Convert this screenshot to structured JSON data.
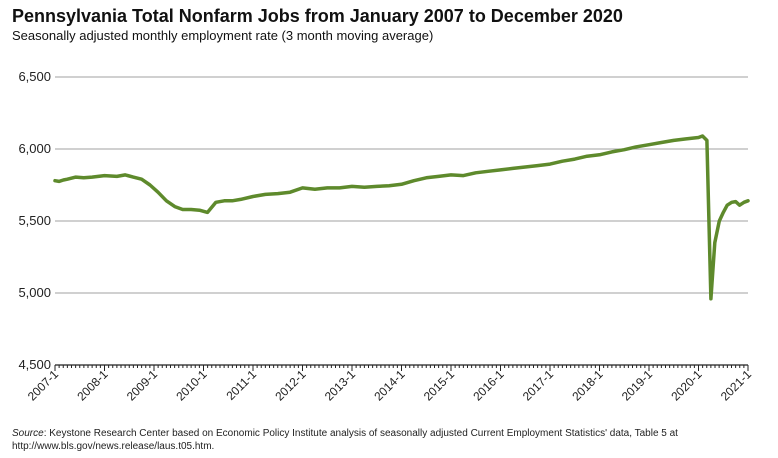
{
  "chart_data": {
    "type": "line",
    "title": "Pennsylvania Total Nonfarm Jobs from January 2007 to December 2020",
    "subtitle": "Seasonally adjusted monthly employment rate (3 month moving average)",
    "xlabel": "",
    "ylabel": "",
    "ylim": [
      4500,
      6500
    ],
    "xlim": [
      2007.0,
      2021.0
    ],
    "y_ticks": [
      "6,500",
      "6,000",
      "5,500",
      "5,000",
      "4,500"
    ],
    "y_tick_values": [
      6500,
      6000,
      5500,
      5000,
      4500
    ],
    "x_ticks": [
      "2007-1",
      "2008-1",
      "2009-1",
      "2010-1",
      "2011-1",
      "2012-1",
      "2013-1",
      "2014-1",
      "2015-1",
      "2016-1",
      "2017-1",
      "2018-1",
      "2019-1",
      "2020-1",
      "2021-1"
    ],
    "x_tick_values": [
      2007,
      2008,
      2009,
      2010,
      2011,
      2012,
      2013,
      2014,
      2015,
      2016,
      2017,
      2018,
      2019,
      2020,
      2021
    ],
    "grid": "horizontal",
    "line_color": "#5e8a2c",
    "series": [
      {
        "x": [
          2007.0,
          2007.08,
          2007.17,
          2007.25,
          2007.42,
          2007.58,
          2007.75,
          2008.0,
          2008.25,
          2008.42,
          2008.58,
          2008.75,
          2008.92,
          2009.08,
          2009.25,
          2009.42,
          2009.58,
          2009.75,
          2009.92,
          2010.08,
          2010.25,
          2010.42,
          2010.58,
          2010.75,
          2011.0,
          2011.25,
          2011.5,
          2011.75,
          2012.0,
          2012.25,
          2012.5,
          2012.75,
          2013.0,
          2013.25,
          2013.5,
          2013.75,
          2014.0,
          2014.25,
          2014.5,
          2014.75,
          2015.0,
          2015.25,
          2015.5,
          2015.75,
          2016.0,
          2016.25,
          2016.5,
          2016.75,
          2017.0,
          2017.25,
          2017.5,
          2017.75,
          2018.0,
          2018.25,
          2018.5,
          2018.75,
          2019.0,
          2019.25,
          2019.5,
          2019.75,
          2020.0,
          2020.08,
          2020.17,
          2020.25,
          2020.33,
          2020.42,
          2020.5,
          2020.58,
          2020.67,
          2020.75,
          2020.83,
          2020.92,
          2021.0
        ],
        "y": [
          5780,
          5775,
          5785,
          5790,
          5805,
          5800,
          5805,
          5815,
          5810,
          5820,
          5805,
          5790,
          5750,
          5700,
          5640,
          5600,
          5580,
          5580,
          5575,
          5560,
          5630,
          5640,
          5640,
          5650,
          5670,
          5685,
          5690,
          5700,
          5730,
          5720,
          5730,
          5730,
          5740,
          5735,
          5740,
          5745,
          5755,
          5780,
          5800,
          5810,
          5820,
          5815,
          5835,
          5845,
          5855,
          5865,
          5875,
          5885,
          5895,
          5915,
          5930,
          5950,
          5960,
          5980,
          5995,
          6015,
          6030,
          6045,
          6060,
          6070,
          6080,
          6090,
          6060,
          4960,
          5350,
          5500,
          5560,
          5610,
          5630,
          5635,
          5610,
          5630,
          5640
        ]
      }
    ],
    "source_label": "Source",
    "source_text": ": Keystone Research Center based on Economic Policy Institute analysis of seasonally adjusted Current Employment Statistics' data, Table 5 at http://www.bls.gov/news.release/laus.t05.htm."
  }
}
